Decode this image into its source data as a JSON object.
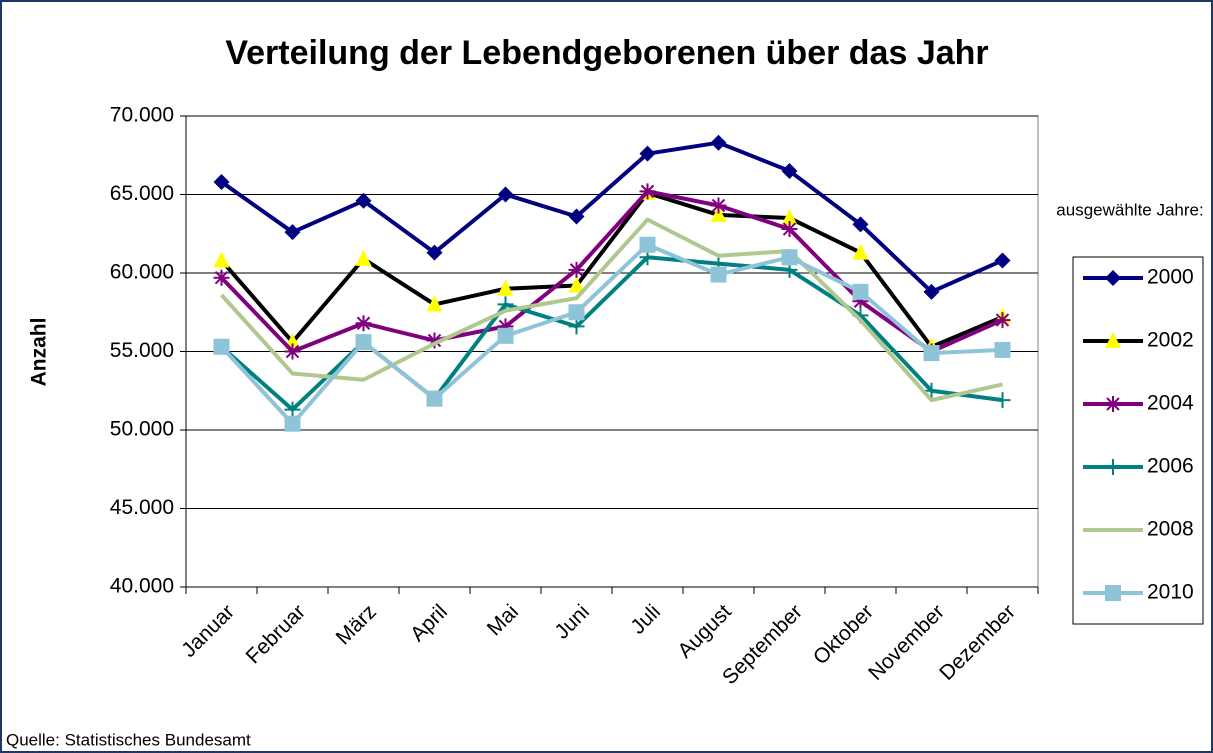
{
  "chart_data": {
    "type": "line",
    "title": "Verteilung der Lebendgeborenen über das Jahr",
    "y_label": "Anzahl",
    "legend_title": "ausgewählte Jahre:",
    "source": "Quelle: Statistisches Bundesamt",
    "legend_position": "right",
    "grid": true,
    "categories": [
      "Januar",
      "Februar",
      "März",
      "April",
      "Mai",
      "Juni",
      "Juli",
      "August",
      "September",
      "Oktober",
      "November",
      "Dezember"
    ],
    "ylim": [
      40000,
      70000
    ],
    "yticks": [
      {
        "value": 40000,
        "label": "40.000"
      },
      {
        "value": 45000,
        "label": "45.000"
      },
      {
        "value": 50000,
        "label": "50.000"
      },
      {
        "value": 55000,
        "label": "55.000"
      },
      {
        "value": 60000,
        "label": "60.000"
      },
      {
        "value": 65000,
        "label": "65.000"
      },
      {
        "value": 70000,
        "label": "70.000"
      }
    ],
    "series": [
      {
        "name": "2000",
        "color": "#000080",
        "marker": "diamond",
        "marker_color": "#000080",
        "values": [
          65800,
          62600,
          64600,
          61300,
          65000,
          63600,
          67600,
          68300,
          66500,
          63100,
          58800,
          60800
        ]
      },
      {
        "name": "2002",
        "color": "#000000",
        "marker": "triangle",
        "marker_color": "#ffff00",
        "values": [
          60800,
          55600,
          60900,
          58000,
          59000,
          59200,
          65100,
          63700,
          63500,
          61300,
          55300,
          57200
        ]
      },
      {
        "name": "2004",
        "color": "#800080",
        "marker": "star",
        "marker_color": "#800080",
        "values": [
          59700,
          55000,
          56800,
          55700,
          56600,
          60200,
          65200,
          64300,
          62800,
          58200,
          55000,
          57000
        ]
      },
      {
        "name": "2006",
        "color": "#008080",
        "marker": "plus",
        "marker_color": "#008080",
        "values": [
          55300,
          51300,
          55600,
          52000,
          58000,
          56600,
          61000,
          60600,
          60200,
          57300,
          52500,
          51900
        ]
      },
      {
        "name": "2008",
        "color": "#b0c890",
        "marker": "none",
        "marker_color": "#b0c890",
        "values": [
          58600,
          53600,
          53200,
          55500,
          57600,
          58400,
          63400,
          61100,
          61400,
          57000,
          51900,
          52900
        ]
      },
      {
        "name": "2010",
        "color": "#8fc3d8",
        "marker": "square",
        "marker_color": "#8fc3d8",
        "values": [
          55300,
          50400,
          55600,
          52000,
          56000,
          57500,
          61800,
          59900,
          61000,
          58800,
          54900,
          55100
        ]
      }
    ]
  }
}
